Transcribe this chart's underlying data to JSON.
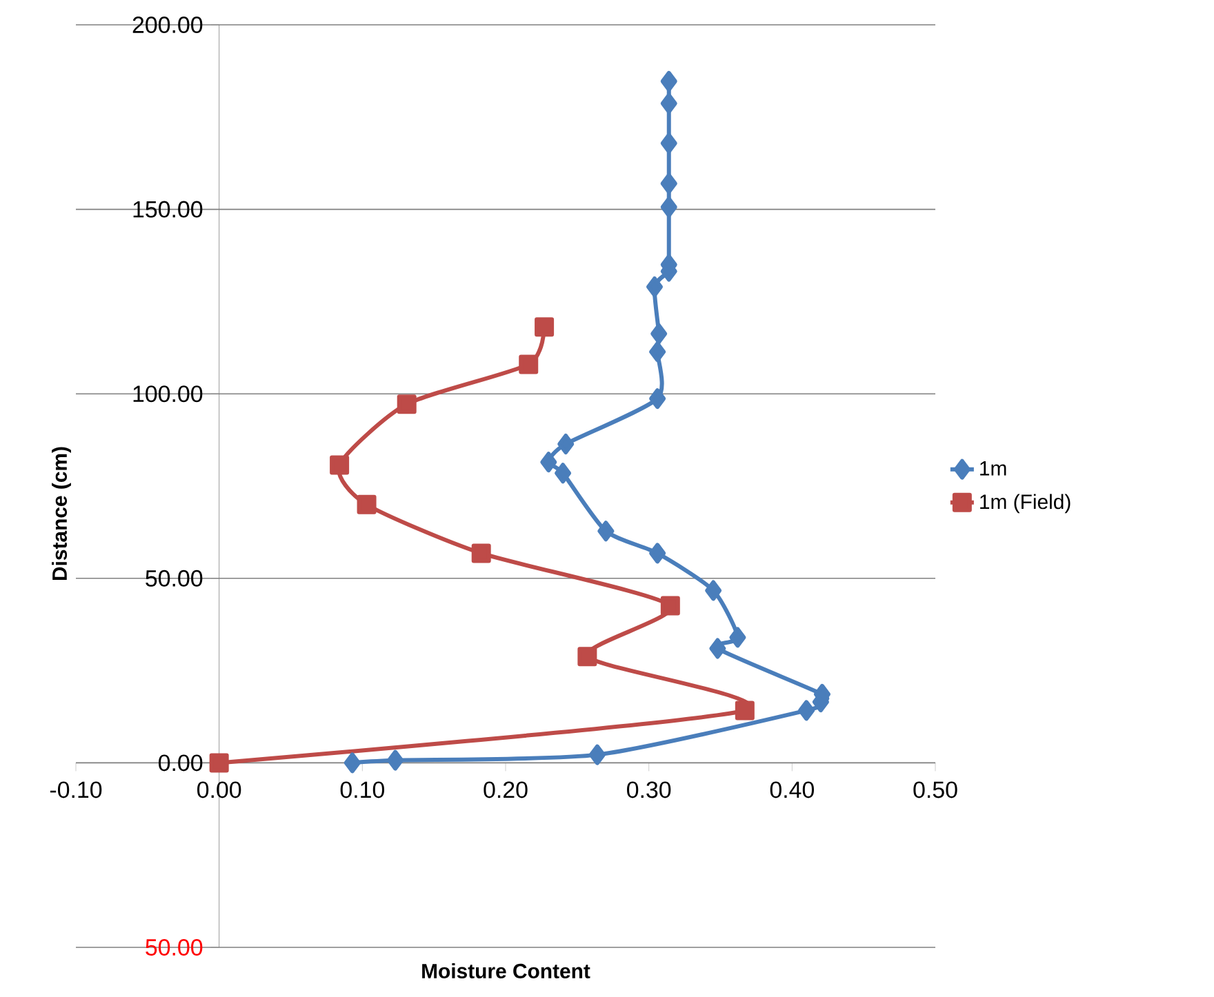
{
  "chart_data": {
    "type": "line",
    "xlabel": "Moisture Content",
    "ylabel": "Distance (cm)",
    "xlim": [
      -0.1,
      0.5
    ],
    "ylim": [
      -50,
      200
    ],
    "xticks": [
      {
        "value": -0.1,
        "label": "-0.10"
      },
      {
        "value": 0,
        "label": "0.00"
      },
      {
        "value": 0.1,
        "label": "0.10"
      },
      {
        "value": 0.2,
        "label": "0.20"
      },
      {
        "value": 0.3,
        "label": "0.30"
      },
      {
        "value": 0.4,
        "label": "0.40"
      },
      {
        "value": 0.5,
        "label": "0.50"
      }
    ],
    "yticks": [
      {
        "value": -50,
        "label": "50.00"
      },
      {
        "value": 0,
        "label": "0.00"
      },
      {
        "value": 50,
        "label": "50.00"
      },
      {
        "value": 100,
        "label": "100.00"
      },
      {
        "value": 150,
        "label": "150.00"
      },
      {
        "value": 200,
        "label": "200.00"
      }
    ],
    "grid": "y",
    "legend": "right",
    "series": [
      {
        "name": "1m",
        "color": "#4a7ebb",
        "marker": "diamond",
        "x": [
          0.093,
          0.123,
          0.264,
          0.41,
          0.42,
          0.421,
          0.348,
          0.362,
          0.345,
          0.306,
          0.27,
          0.24,
          0.23,
          0.242,
          0.306,
          0.306,
          0.307,
          0.304,
          0.314,
          0.314,
          0.314,
          0.314,
          0.314,
          0.314,
          0.314
        ],
        "values": [
          0,
          0.7,
          2.2,
          14.2,
          16.5,
          18.6,
          31,
          34,
          46.7,
          56.8,
          62.8,
          78.5,
          81.5,
          86.4,
          98.7,
          111.4,
          116.3,
          129,
          133.2,
          135,
          150.6,
          157,
          167.9,
          178.7,
          184.7
        ]
      },
      {
        "name": "1m (Field)",
        "color": "#be4b48",
        "marker": "square",
        "x": [
          0,
          0.367,
          0.257,
          0.315,
          0.183,
          0.103,
          0.084,
          0.131,
          0.216,
          0.227
        ],
        "values": [
          0,
          14.2,
          28.8,
          42.6,
          56.8,
          70,
          80.7,
          97.2,
          108,
          118.1
        ]
      }
    ]
  }
}
